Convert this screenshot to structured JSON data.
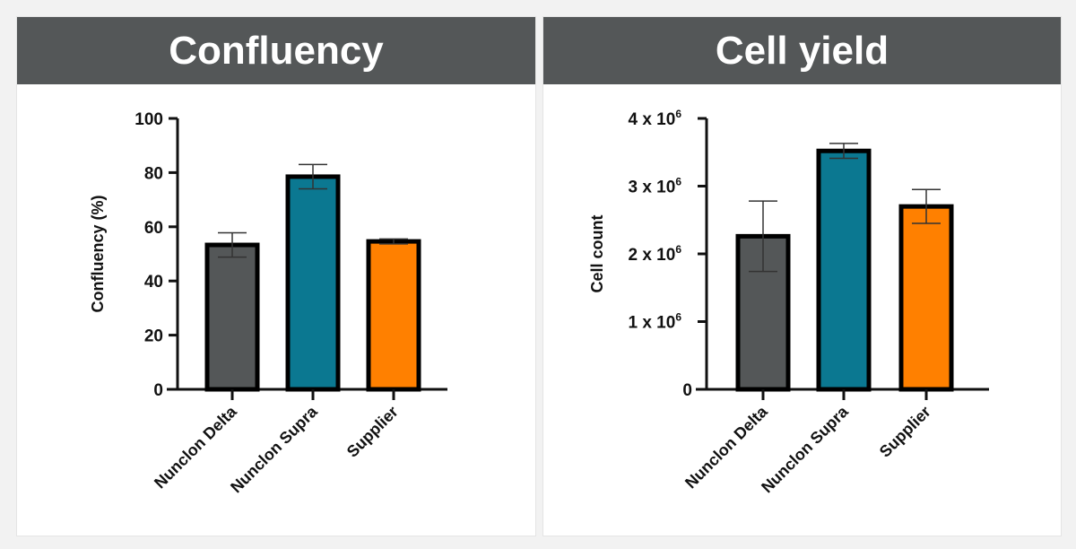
{
  "chart_data": [
    {
      "type": "bar",
      "title": "Confluency",
      "ylabel": "Confluency (%)",
      "xlabel": "",
      "categories": [
        "Nunclon Delta",
        "Nunclon Supra",
        "Supplier"
      ],
      "values": [
        53.3,
        78.5,
        54.6
      ],
      "error": [
        4.5,
        4.5,
        0.9
      ],
      "ylim": [
        0,
        100
      ],
      "yticks": [
        0,
        20,
        40,
        60,
        80,
        100
      ],
      "ytick_labels": [
        "0",
        "20",
        "40",
        "60",
        "80",
        "100"
      ],
      "colors": [
        "#545758",
        "#0b7891",
        "#ff8000"
      ],
      "grid": false
    },
    {
      "type": "bar",
      "title": "Cell yield",
      "ylabel": "Cell count",
      "xlabel": "",
      "categories": [
        "Nunclon Delta",
        "Nunclon Supra",
        "Supplier"
      ],
      "values": [
        2260000,
        3520000,
        2700000
      ],
      "error": [
        520000,
        110000,
        250000
      ],
      "ylim": [
        0,
        4000000
      ],
      "yticks": [
        0,
        1000000,
        2000000,
        3000000,
        4000000
      ],
      "ytick_labels": [
        "0",
        "1 x 10",
        "2 x 10",
        "3 x 10",
        "4 x 10"
      ],
      "ytick_exponent": "6",
      "colors": [
        "#545758",
        "#0b7891",
        "#ff8000"
      ],
      "grid": false
    }
  ]
}
